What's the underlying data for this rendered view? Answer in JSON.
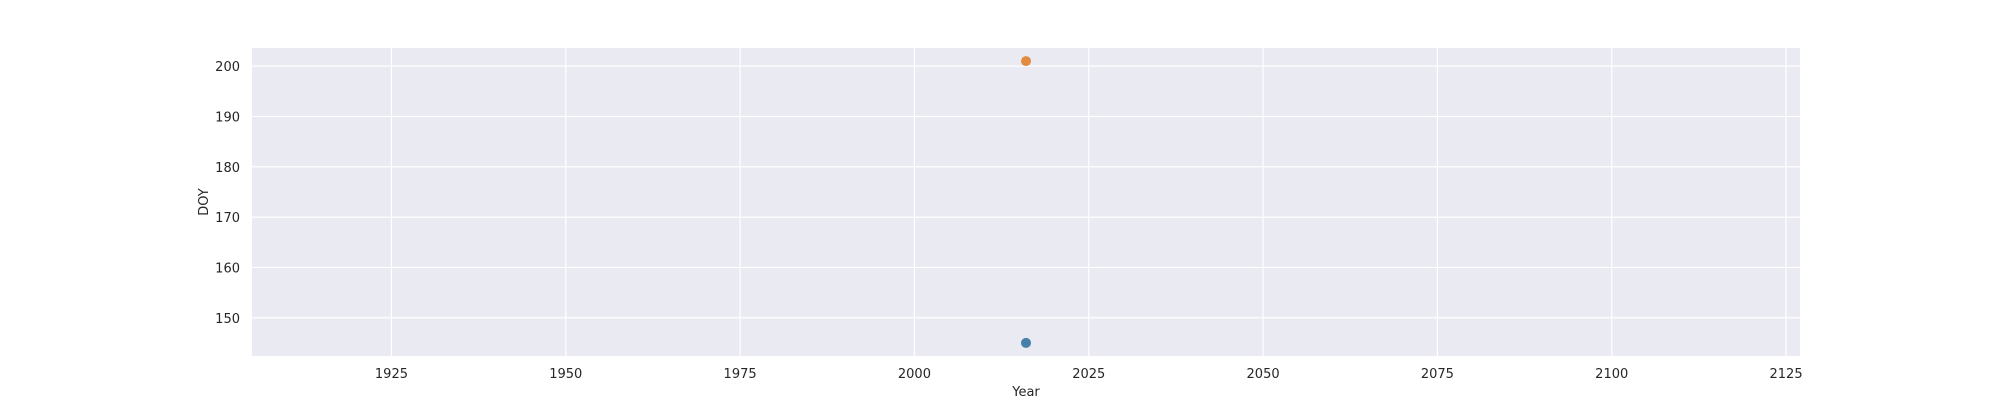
{
  "chart_data": {
    "type": "scatter",
    "xlabel": "Year",
    "ylabel": "DOY",
    "xlim": [
      1905,
      2127
    ],
    "ylim": [
      142.4,
      203.6
    ],
    "xticks": [
      1925,
      1950,
      1975,
      2000,
      2025,
      2050,
      2075,
      2100,
      2125
    ],
    "yticks": [
      150,
      160,
      170,
      180,
      190,
      200
    ],
    "grid": true,
    "background": "#eaeaf2",
    "series": [
      {
        "x": [
          2016
        ],
        "y": [
          145
        ],
        "color": "#3274a1"
      },
      {
        "x": [
          2016
        ],
        "y": [
          201
        ],
        "color": "#e1812c"
      }
    ]
  }
}
